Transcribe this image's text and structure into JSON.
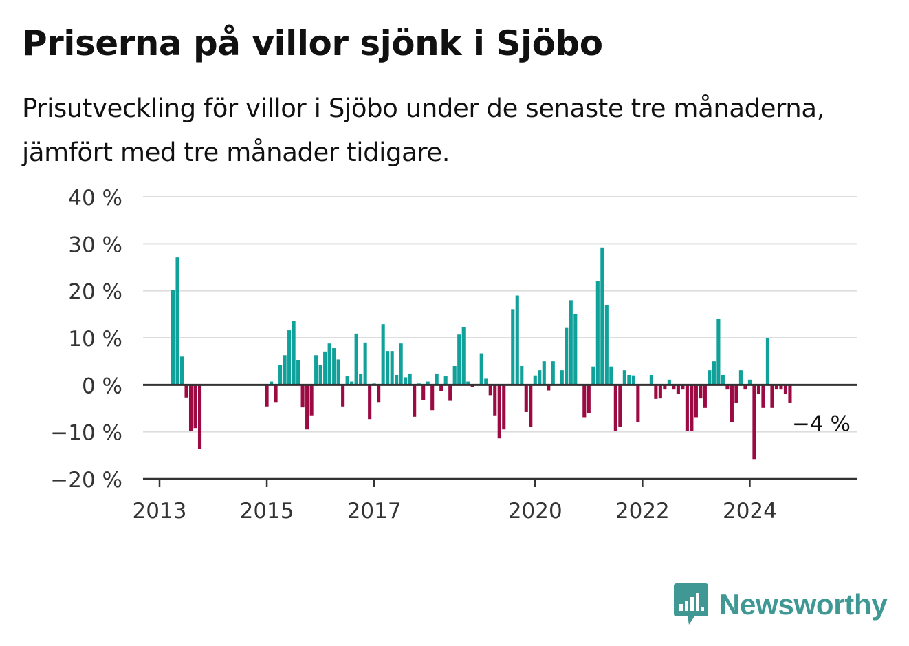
{
  "title": "Priserna på villor sjönk i Sjöbo",
  "subtitle": "Prisutveckling för villor i Sjöbo under de senaste tre månaderna, jämfört med tre månader tidigare.",
  "brand": {
    "name": "Newsworthy",
    "icon": "newsworthy-logo-icon",
    "color": "#3f9893"
  },
  "chart_data": {
    "type": "bar",
    "y_ticks": [
      {
        "value": 40,
        "label": "40 %"
      },
      {
        "value": 30,
        "label": "30 %"
      },
      {
        "value": 20,
        "label": "20 %"
      },
      {
        "value": 10,
        "label": "10 %"
      },
      {
        "value": 0,
        "label": "0 %"
      },
      {
        "value": -10,
        "label": "−10 %"
      },
      {
        "value": -20,
        "label": "−20 %"
      }
    ],
    "ylim": [
      -20,
      40
    ],
    "x_ticks": [
      "2013",
      "2015",
      "2017",
      "2020",
      "2022",
      "2024"
    ],
    "xlim": [
      "2013-01",
      "2025-12"
    ],
    "grid": true,
    "colors": {
      "positive": "#10a19a",
      "negative": "#9b0a43",
      "grid": "#dddddd",
      "axis": "#333333"
    },
    "annotation": {
      "x": "2024-12",
      "value": -4,
      "label": "−4 %"
    },
    "values": [
      {
        "x": "2013-04",
        "value": 20.2
      },
      {
        "x": "2013-05",
        "value": 27.1
      },
      {
        "x": "2013-06",
        "value": 6.0
      },
      {
        "x": "2013-07",
        "value": -2.7
      },
      {
        "x": "2013-08",
        "value": -9.8
      },
      {
        "x": "2013-09",
        "value": -9.2
      },
      {
        "x": "2013-10",
        "value": -13.7
      },
      {
        "x": "2015-01",
        "value": -4.6
      },
      {
        "x": "2015-02",
        "value": 0.7
      },
      {
        "x": "2015-03",
        "value": -3.8
      },
      {
        "x": "2015-04",
        "value": 4.2
      },
      {
        "x": "2015-05",
        "value": 6.3
      },
      {
        "x": "2015-06",
        "value": 11.6
      },
      {
        "x": "2015-07",
        "value": 13.6
      },
      {
        "x": "2015-08",
        "value": 5.3
      },
      {
        "x": "2015-09",
        "value": -4.8
      },
      {
        "x": "2015-10",
        "value": -9.5
      },
      {
        "x": "2015-11",
        "value": -6.5
      },
      {
        "x": "2015-12",
        "value": 6.3
      },
      {
        "x": "2016-01",
        "value": 4.2
      },
      {
        "x": "2016-02",
        "value": 7.1
      },
      {
        "x": "2016-03",
        "value": 8.8
      },
      {
        "x": "2016-04",
        "value": 7.8
      },
      {
        "x": "2016-05",
        "value": 5.4
      },
      {
        "x": "2016-06",
        "value": -4.6
      },
      {
        "x": "2016-07",
        "value": 1.8
      },
      {
        "x": "2016-08",
        "value": 0.7
      },
      {
        "x": "2016-09",
        "value": 10.9
      },
      {
        "x": "2016-10",
        "value": 2.3
      },
      {
        "x": "2016-11",
        "value": 9.0
      },
      {
        "x": "2016-12",
        "value": -7.3
      },
      {
        "x": "2017-01",
        "value": 0.3
      },
      {
        "x": "2017-02",
        "value": -3.8
      },
      {
        "x": "2017-03",
        "value": 12.9
      },
      {
        "x": "2017-04",
        "value": 7.2
      },
      {
        "x": "2017-05",
        "value": 7.2
      },
      {
        "x": "2017-06",
        "value": 2.1
      },
      {
        "x": "2017-07",
        "value": 8.8
      },
      {
        "x": "2017-08",
        "value": 1.6
      },
      {
        "x": "2017-09",
        "value": 2.4
      },
      {
        "x": "2017-10",
        "value": -6.8
      },
      {
        "x": "2017-11",
        "value": 0.3
      },
      {
        "x": "2017-12",
        "value": -3.2
      },
      {
        "x": "2018-01",
        "value": 0.7
      },
      {
        "x": "2018-02",
        "value": -5.4
      },
      {
        "x": "2018-03",
        "value": 2.4
      },
      {
        "x": "2018-04",
        "value": -1.3
      },
      {
        "x": "2018-05",
        "value": 1.8
      },
      {
        "x": "2018-06",
        "value": -3.4
      },
      {
        "x": "2018-07",
        "value": 4.0
      },
      {
        "x": "2018-08",
        "value": 10.7
      },
      {
        "x": "2018-09",
        "value": 12.3
      },
      {
        "x": "2018-10",
        "value": 0.7
      },
      {
        "x": "2018-11",
        "value": -0.5
      },
      {
        "x": "2018-12",
        "value": 0.2
      },
      {
        "x": "2019-01",
        "value": 6.7
      },
      {
        "x": "2019-02",
        "value": 1.3
      },
      {
        "x": "2019-03",
        "value": -2.2
      },
      {
        "x": "2019-04",
        "value": -6.5
      },
      {
        "x": "2019-05",
        "value": -11.4
      },
      {
        "x": "2019-06",
        "value": -9.5
      },
      {
        "x": "2019-07",
        "value": 0.2
      },
      {
        "x": "2019-08",
        "value": 16.1
      },
      {
        "x": "2019-09",
        "value": 19.0
      },
      {
        "x": "2019-10",
        "value": 4.0
      },
      {
        "x": "2019-11",
        "value": -5.8
      },
      {
        "x": "2019-12",
        "value": -9.0
      },
      {
        "x": "2020-01",
        "value": 2.0
      },
      {
        "x": "2020-02",
        "value": 3.1
      },
      {
        "x": "2020-03",
        "value": 5.0
      },
      {
        "x": "2020-04",
        "value": -1.2
      },
      {
        "x": "2020-05",
        "value": 5.0
      },
      {
        "x": "2020-06",
        "value": 0.2
      },
      {
        "x": "2020-07",
        "value": 3.1
      },
      {
        "x": "2020-08",
        "value": 12.1
      },
      {
        "x": "2020-09",
        "value": 18.0
      },
      {
        "x": "2020-10",
        "value": 15.1
      },
      {
        "x": "2020-11",
        "value": 0.2
      },
      {
        "x": "2020-12",
        "value": -6.9
      },
      {
        "x": "2021-01",
        "value": -6.0
      },
      {
        "x": "2021-02",
        "value": 3.9
      },
      {
        "x": "2021-03",
        "value": 22.1
      },
      {
        "x": "2021-04",
        "value": 29.2
      },
      {
        "x": "2021-05",
        "value": 16.9
      },
      {
        "x": "2021-06",
        "value": 3.9
      },
      {
        "x": "2021-07",
        "value": -9.9
      },
      {
        "x": "2021-08",
        "value": -8.9
      },
      {
        "x": "2021-09",
        "value": 3.1
      },
      {
        "x": "2021-10",
        "value": 2.1
      },
      {
        "x": "2021-11",
        "value": 2.0
      },
      {
        "x": "2021-12",
        "value": -7.9
      },
      {
        "x": "2022-01",
        "value": 0.2
      },
      {
        "x": "2022-02",
        "value": 0.2
      },
      {
        "x": "2022-03",
        "value": 2.1
      },
      {
        "x": "2022-04",
        "value": -3.0
      },
      {
        "x": "2022-05",
        "value": -2.9
      },
      {
        "x": "2022-06",
        "value": -1.0
      },
      {
        "x": "2022-07",
        "value": 1.1
      },
      {
        "x": "2022-08",
        "value": -1.0
      },
      {
        "x": "2022-09",
        "value": -2.0
      },
      {
        "x": "2022-10",
        "value": -1.0
      },
      {
        "x": "2022-11",
        "value": -9.9
      },
      {
        "x": "2022-12",
        "value": -9.9
      },
      {
        "x": "2023-01",
        "value": -6.9
      },
      {
        "x": "2023-02",
        "value": -2.9
      },
      {
        "x": "2023-03",
        "value": -4.9
      },
      {
        "x": "2023-04",
        "value": 3.1
      },
      {
        "x": "2023-05",
        "value": 5.0
      },
      {
        "x": "2023-06",
        "value": 14.1
      },
      {
        "x": "2023-07",
        "value": 2.1
      },
      {
        "x": "2023-08",
        "value": -1.0
      },
      {
        "x": "2023-09",
        "value": -7.9
      },
      {
        "x": "2023-10",
        "value": -3.9
      },
      {
        "x": "2023-11",
        "value": 3.1
      },
      {
        "x": "2023-12",
        "value": -1.0
      },
      {
        "x": "2024-01",
        "value": 1.1
      },
      {
        "x": "2024-02",
        "value": -15.8
      },
      {
        "x": "2024-03",
        "value": -2.0
      },
      {
        "x": "2024-04",
        "value": -4.9
      },
      {
        "x": "2024-05",
        "value": 10.0
      },
      {
        "x": "2024-06",
        "value": -4.9
      },
      {
        "x": "2024-07",
        "value": -1.0
      },
      {
        "x": "2024-08",
        "value": -1.0
      },
      {
        "x": "2024-09",
        "value": -2.0
      },
      {
        "x": "2024-10",
        "value": -3.9
      }
    ]
  }
}
